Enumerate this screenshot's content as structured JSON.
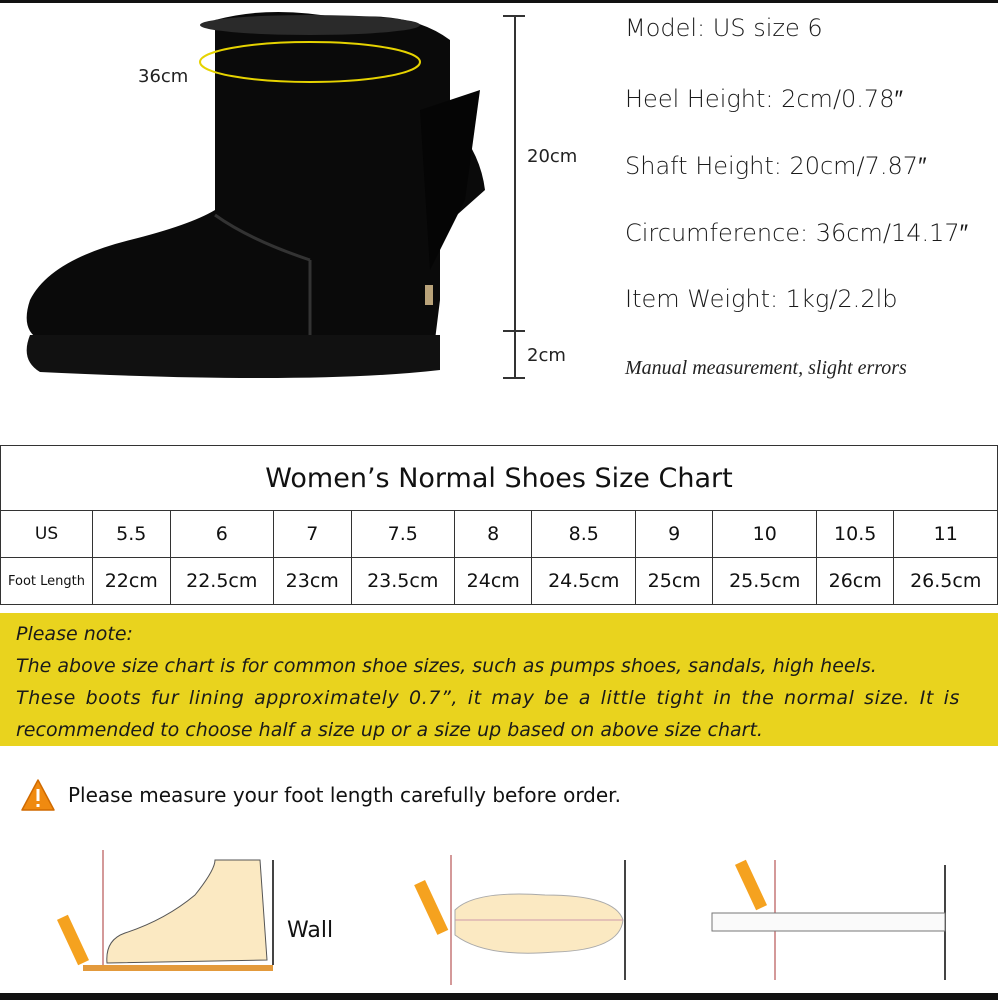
{
  "product": {
    "circumference_label": "36cm",
    "shaft_label": "20cm",
    "heel_label": "2cm",
    "specs": [
      "Model:  US size 6",
      "Heel Height: 2cm/0.78″",
      "Shaft Height: 20cm/7.87″",
      "Circumference: 36cm/14.17″",
      "Item Weight: 1kg/2.2lb"
    ],
    "measure_note": "Manual measurement, slight errors"
  },
  "size_chart": {
    "title": "Women’s Normal Shoes Size Chart",
    "rows": [
      {
        "label": "US",
        "values": [
          "5.5",
          "6",
          "7",
          "7.5",
          "8",
          "8.5",
          "9",
          "10",
          "10.5",
          "11"
        ]
      },
      {
        "label": "Foot Length",
        "values": [
          "22cm",
          "22.5cm",
          "23cm",
          "23.5cm",
          "24cm",
          "24.5cm",
          "25cm",
          "25.5cm",
          "26cm",
          "26.5cm"
        ]
      }
    ]
  },
  "note": {
    "heading": "Please note:",
    "lines": [
      "The above size chart is for common shoe sizes, such as pumps shoes, sandals, high heels.",
      "These boots fur lining approximately 0.7”, it may be a little tight in the normal size. It is",
      "recommended to choose half a size up or a size up based on above size chart."
    ],
    "color": "#e9d31e"
  },
  "warning": {
    "icon": "warning-triangle-icon",
    "text": "Please measure your foot length carefully before order."
  },
  "diagrams": {
    "wall_label": "Wall"
  }
}
